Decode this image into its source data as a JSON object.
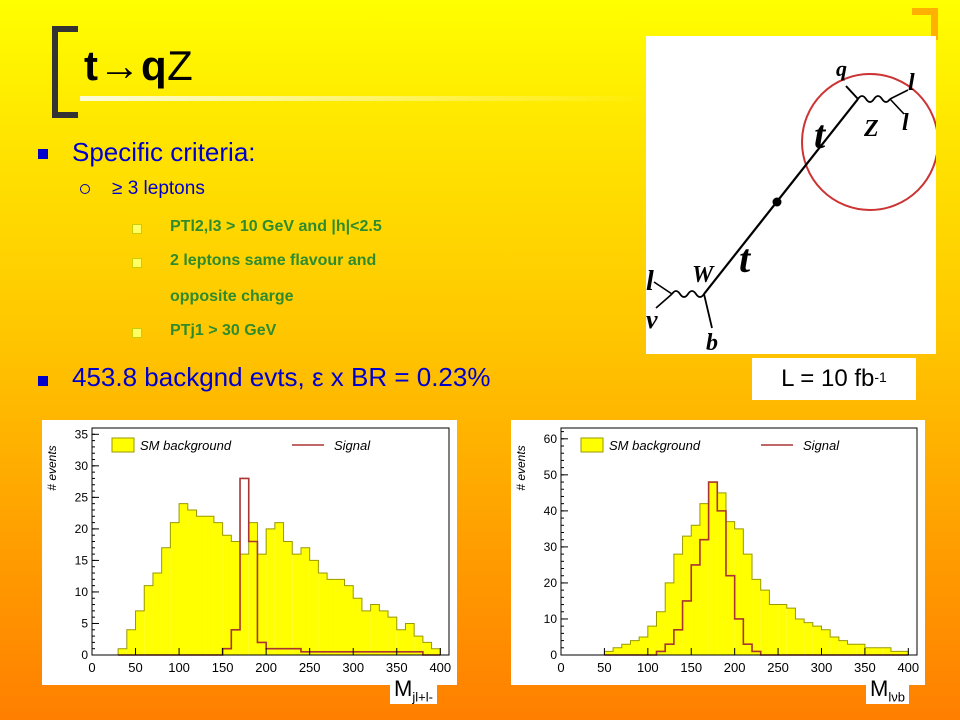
{
  "title": {
    "t": "t",
    "arrow": "→",
    "q": "q",
    "z": "Z"
  },
  "bullets": {
    "b1": "Specific criteria:",
    "b1_sub": "≥ 3 leptons",
    "b1_items": [
      "PTl2,l3 > 10 GeV and |h|<2.5",
      "2 leptons same flavour and",
      "opposite charge",
      "PTj1 > 30 GeV"
    ],
    "b2": "453.8 backgnd evts, ε x BR = 0.23%"
  },
  "lumi": {
    "text": "L = 10 fb",
    "sup": "-1"
  },
  "feynman": {
    "labels": [
      "q",
      "l",
      "l",
      "Z",
      "t",
      "t",
      "W",
      "l",
      "ν",
      "b"
    ]
  },
  "colors": {
    "background_top": "#ffff00",
    "background_bottom": "#ff7f00",
    "bullet_text": "#0000cc",
    "sub_item_text": "#2e8b2e",
    "hist_fill": "#ffff00",
    "signal_line": "#aa3333"
  },
  "chart_data": [
    {
      "type": "bar",
      "title": "",
      "xlabel": "Mjl+l-",
      "ylabel": "# events",
      "xlim": [
        0,
        410
      ],
      "ylim": [
        0,
        36
      ],
      "xticks": [
        0,
        50,
        100,
        150,
        200,
        250,
        300,
        350,
        400
      ],
      "yticks": [
        0,
        5,
        10,
        15,
        20,
        25,
        30,
        35
      ],
      "bin_width": 10,
      "legend": [
        "SM background",
        "Signal"
      ],
      "x": [
        30,
        40,
        50,
        60,
        70,
        80,
        90,
        100,
        110,
        120,
        130,
        140,
        150,
        160,
        170,
        180,
        190,
        200,
        210,
        220,
        230,
        240,
        250,
        260,
        270,
        280,
        290,
        300,
        310,
        320,
        330,
        340,
        350,
        360,
        370,
        380,
        390
      ],
      "series": [
        {
          "name": "SM background",
          "values": [
            1,
            4,
            7,
            11,
            13,
            17,
            21,
            24,
            23,
            22,
            22,
            21,
            19,
            18,
            16,
            21,
            16,
            20,
            21,
            18,
            16,
            17,
            15,
            13,
            12,
            12,
            11,
            9,
            7,
            8,
            7,
            6,
            4,
            5,
            3,
            2,
            1
          ]
        },
        {
          "name": "Signal",
          "values": [
            0,
            0,
            0,
            0,
            0,
            0,
            0,
            0,
            0,
            0,
            0,
            0,
            1,
            4,
            28,
            18,
            2,
            1,
            1,
            1,
            1,
            0.5,
            0.5,
            0.5,
            0.5,
            0.5,
            0.5,
            0.5,
            0.5,
            0.5,
            0.5,
            0.5,
            0.5,
            0.5,
            0.5,
            0,
            0
          ]
        }
      ]
    },
    {
      "type": "bar",
      "title": "",
      "xlabel": "Mlνb",
      "ylabel": "# events",
      "xlim": [
        0,
        410
      ],
      "ylim": [
        0,
        63
      ],
      "xticks": [
        0,
        50,
        100,
        150,
        200,
        250,
        300,
        350,
        400
      ],
      "yticks": [
        0,
        10,
        20,
        30,
        40,
        50,
        60
      ],
      "bin_width": 10,
      "legend": [
        "SM background",
        "Signal"
      ],
      "x": [
        50,
        60,
        70,
        80,
        90,
        100,
        110,
        120,
        130,
        140,
        150,
        160,
        170,
        180,
        190,
        200,
        210,
        220,
        230,
        240,
        250,
        260,
        270,
        280,
        290,
        300,
        310,
        320,
        330,
        340,
        350,
        360,
        370,
        380,
        390
      ],
      "series": [
        {
          "name": "SM background",
          "values": [
            1,
            2,
            3,
            4,
            5,
            8,
            12,
            20,
            28,
            33,
            36,
            42,
            48,
            45,
            37,
            35,
            28,
            21,
            18,
            14,
            14,
            13,
            10,
            9,
            8,
            7,
            5,
            4,
            3,
            3,
            2,
            2,
            2,
            1,
            1
          ]
        },
        {
          "name": "Signal",
          "values": [
            0,
            0,
            0,
            0,
            0,
            0,
            1,
            3,
            7,
            15,
            25,
            32,
            48,
            40,
            22,
            10,
            3,
            1,
            0,
            0,
            0,
            0,
            0,
            0,
            0,
            0,
            0,
            0,
            0,
            0,
            0,
            0,
            0,
            0,
            0
          ]
        }
      ]
    }
  ]
}
